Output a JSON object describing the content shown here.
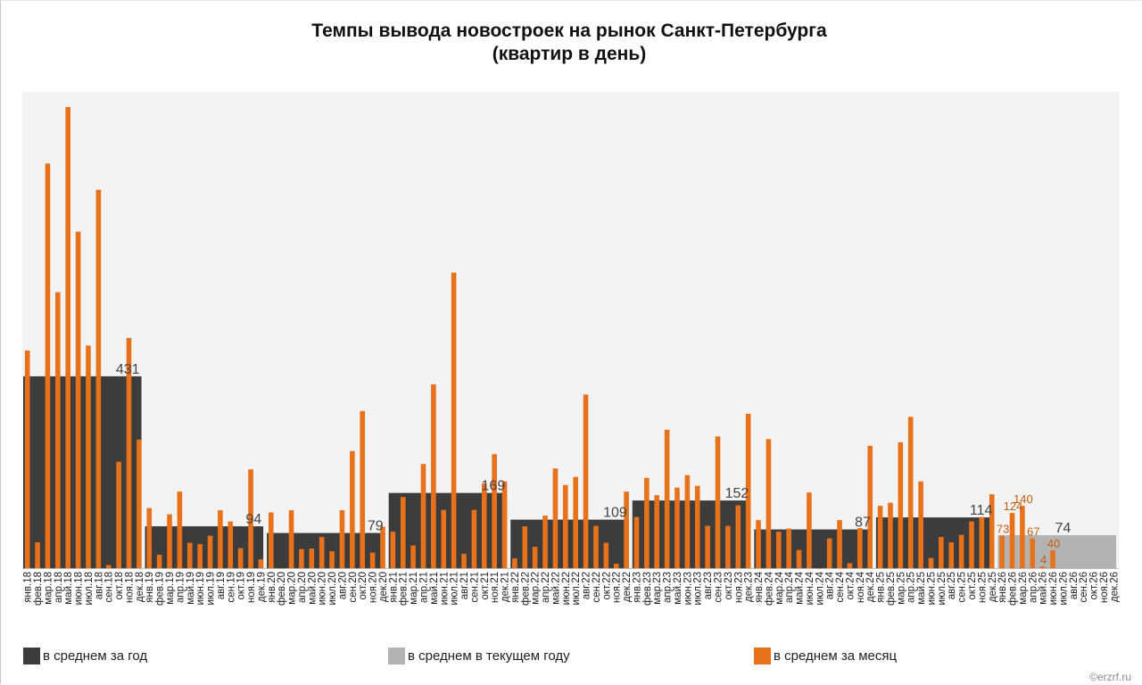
{
  "chart_data": {
    "type": "bar",
    "title": [
      "Темпы вывода новостроек на рынок Санкт-Петербурга",
      "(квартир в день)"
    ],
    "ylim": [
      0,
      1070
    ],
    "grid": false,
    "legend_position": "bottom",
    "colors": {
      "annual": "#3c3c3c",
      "current_year": "#b3b3b3",
      "monthly": "#e8711c",
      "plot_bg": "#f3f3f3",
      "annual_label": "#444444",
      "monthly_label": "#c45e10"
    },
    "categories": [
      "янв.18",
      "фев.18",
      "мар.18",
      "апр.18",
      "май.18",
      "июн.18",
      "июл.18",
      "авг.18",
      "сен.18",
      "окт.18",
      "ноя.18",
      "дек.18",
      "янв.19",
      "фев.19",
      "мар.19",
      "апр.19",
      "май.19",
      "июн.19",
      "июл.19",
      "авг.19",
      "сен.19",
      "окт.19",
      "ноя.19",
      "дек.19",
      "янв.20",
      "фев.20",
      "мар.20",
      "апр.20",
      "май.20",
      "июн.20",
      "июл.20",
      "авг.20",
      "сен.20",
      "окт.20",
      "ноя.20",
      "дек.20",
      "янв.21",
      "фев.21",
      "мар.21",
      "апр.21",
      "май.21",
      "июн.21",
      "июл.21",
      "авг.21",
      "сен.21",
      "окт.21",
      "ноя.21",
      "дек.21",
      "янв.22",
      "фев.22",
      "мар.22",
      "апр.22",
      "май.22",
      "июн.22",
      "июл.22",
      "авг.22",
      "сен.22",
      "окт.22",
      "ноя.22",
      "дек.22",
      "янв.23",
      "фев.23",
      "мар.23",
      "апр.23",
      "май.23",
      "июн.23",
      "июл.23",
      "авг.23",
      "сен.23",
      "окт.23",
      "ноя.23",
      "дек.23",
      "янв.24",
      "фев.24",
      "мар.24",
      "апр.24",
      "май.24",
      "июн.24",
      "июл.24",
      "авг.24",
      "сен.24",
      "окт.24",
      "ноя.24",
      "дек.24",
      "янв.25",
      "фев.25",
      "мар.25",
      "апр.25",
      "май.25",
      "июн.25",
      "июл.25",
      "авг.25",
      "сен.25",
      "окт.25",
      "ноя.25",
      "дек.25",
      "янв.26",
      "фев.26",
      "мар.26",
      "апр.26",
      "май.26",
      "июн.26",
      "июл.26",
      "авг.26",
      "сен.26",
      "окт.26",
      "ноя.26",
      "дек.26"
    ],
    "series": [
      {
        "name": "в среднем за месяц",
        "values": [
          489,
          58,
          909,
          620,
          1036,
          756,
          500,
          850,
          7,
          239,
          517,
          289,
          135,
          30,
          121,
          172,
          57,
          54,
          73,
          130,
          105,
          45,
          222,
          20,
          125,
          0,
          130,
          43,
          44,
          70,
          38,
          130,
          263,
          353,
          35,
          93,
          82,
          160,
          51,
          234,
          413,
          131,
          664,
          32,
          131,
          190,
          256,
          195,
          22,
          94,
          48,
          118,
          224,
          187,
          205,
          390,
          95,
          57,
          10,
          172,
          115,
          203,
          164,
          311,
          181,
          209,
          185,
          95,
          296,
          95,
          141,
          347,
          108,
          290,
          82,
          89,
          41,
          170,
          0,
          67,
          108,
          11,
          90,
          275,
          140,
          147,
          283,
          340,
          195,
          23,
          70,
          58,
          75,
          105,
          115,
          166,
          73,
          124,
          140,
          67,
          4,
          40,
          null,
          null,
          null,
          null,
          null,
          null
        ]
      },
      {
        "name": "в среднем за год",
        "annual": [
          {
            "year": "2018",
            "value": 431,
            "label": "431"
          },
          {
            "year": "2019",
            "value": 94,
            "label": "94"
          },
          {
            "year": "2020",
            "value": 79,
            "label": "79"
          },
          {
            "year": "2021",
            "value": 169,
            "label": "169"
          },
          {
            "year": "2022",
            "value": 109,
            "label": "109"
          },
          {
            "year": "2023",
            "value": 152,
            "label": "152"
          },
          {
            "year": "2024",
            "value": 87,
            "label": "87"
          },
          {
            "year": "2025",
            "value": 114,
            "label": "114"
          }
        ]
      },
      {
        "name": "в среднем в текущем году",
        "year": "2026",
        "value": 74,
        "label": "74"
      }
    ],
    "monthly_labels_2026": [
      "73",
      "124",
      "140",
      "67",
      "4",
      "40"
    ]
  },
  "legend": {
    "annual_label": "в среднем за год",
    "current_label": "в среднем в текущем году",
    "monthly_label": "в среднем за месяц"
  },
  "watermark": "©erzrf.ru"
}
